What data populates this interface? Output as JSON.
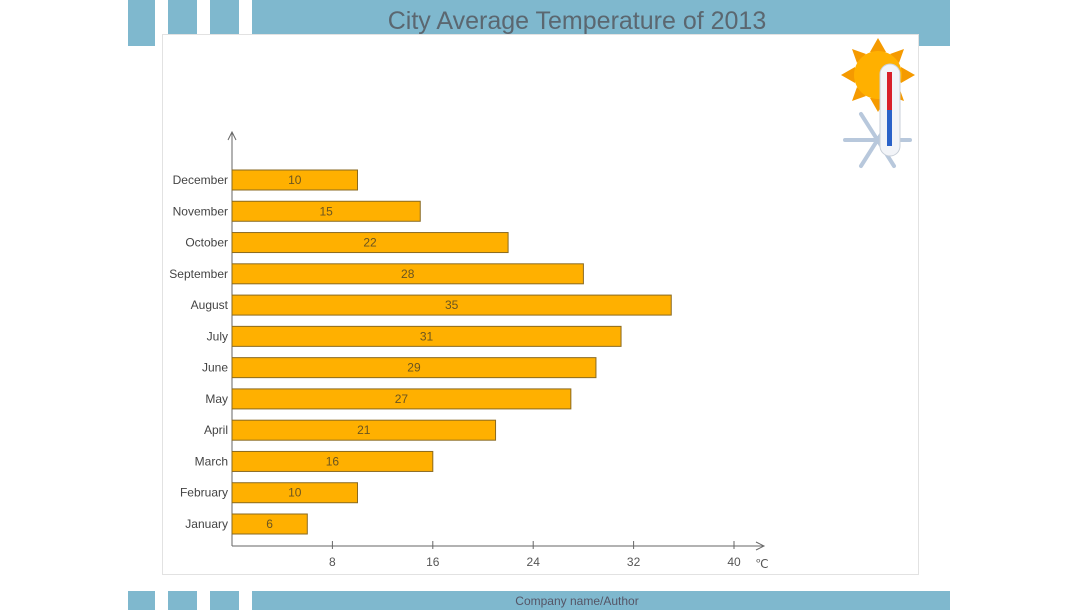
{
  "header": {
    "title": "City Average Temperature of 2013"
  },
  "footer": {
    "text": "Company name/Author"
  },
  "colors": {
    "header": "#7fb8ce",
    "bar": "#ffb000",
    "bar_border": "#8a6a20"
  },
  "icon": "sun-thermometer-snowflake-icon",
  "chart_data": {
    "type": "bar",
    "orientation": "horizontal",
    "title": "City Average Temperature of 2013",
    "xlabel": "℃",
    "categories": [
      "January",
      "February",
      "March",
      "April",
      "May",
      "June",
      "July",
      "August",
      "September",
      "October",
      "November",
      "December"
    ],
    "values": [
      6,
      10,
      16,
      21,
      27,
      29,
      31,
      35,
      28,
      22,
      15,
      10
    ],
    "xlim": [
      0,
      40
    ],
    "xticks": [
      8,
      16,
      24,
      32,
      40
    ],
    "grid": false
  }
}
